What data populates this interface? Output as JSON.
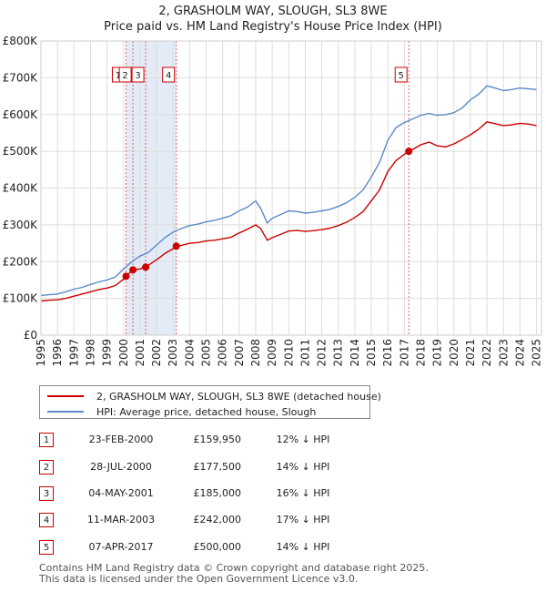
{
  "chart_data": {
    "type": "line",
    "title_line1": "2, GRASHOLM WAY, SLOUGH, SL3 8WE",
    "title_line2": "Price paid vs. HM Land Registry's House Price Index (HPI)",
    "xlim": [
      1995,
      2025.3
    ],
    "ylim": [
      0,
      800000
    ],
    "y_ticks": [
      0,
      100000,
      200000,
      300000,
      400000,
      500000,
      600000,
      700000,
      800000
    ],
    "y_tick_labels": [
      "£0",
      "£100K",
      "£200K",
      "£300K",
      "£400K",
      "£500K",
      "£600K",
      "£700K",
      "£800K"
    ],
    "x_ticks": [
      1995,
      1996,
      1997,
      1998,
      1999,
      2000,
      2001,
      2002,
      2003,
      2004,
      2005,
      2006,
      2007,
      2008,
      2009,
      2010,
      2011,
      2012,
      2013,
      2014,
      2015,
      2016,
      2017,
      2018,
      2019,
      2020,
      2021,
      2022,
      2023,
      2024,
      2025
    ],
    "x_tick_labels": [
      "1995",
      "1996",
      "1997",
      "1998",
      "1999",
      "2000",
      "2001",
      "2002",
      "2003",
      "2004",
      "2005",
      "2006",
      "2007",
      "2008",
      "2009",
      "2010",
      "2011",
      "2012",
      "2013",
      "2014",
      "2015",
      "2016",
      "2017",
      "2018",
      "2019",
      "2020",
      "2021",
      "2022",
      "2023",
      "2024",
      "2025"
    ],
    "highlight_band": [
      2000.15,
      2003.2
    ],
    "grid": true,
    "series": [
      {
        "name": "HPI: Average price, detached house, Slough",
        "color": "#5b8ac6",
        "x": [
          1995,
          1995.5,
          1996,
          1996.5,
          1997,
          1997.5,
          1998,
          1998.5,
          1999,
          1999.5,
          2000,
          2000.5,
          2001,
          2001.5,
          2002,
          2002.5,
          2003,
          2003.5,
          2004,
          2004.5,
          2005,
          2005.5,
          2006,
          2006.5,
          2007,
          2007.5,
          2008,
          2008.3,
          2008.7,
          2009,
          2009.5,
          2010,
          2010.5,
          2011,
          2011.5,
          2012,
          2012.5,
          2013,
          2013.5,
          2014,
          2014.5,
          2015,
          2015.5,
          2016,
          2016.5,
          2017,
          2017.5,
          2018,
          2018.5,
          2019,
          2019.5,
          2020,
          2020.5,
          2021,
          2021.5,
          2022,
          2022.5,
          2023,
          2023.5,
          2024,
          2024.5,
          2025
        ],
        "values": [
          108000,
          110000,
          112000,
          118000,
          125000,
          130000,
          138000,
          145000,
          150000,
          158000,
          180000,
          200000,
          215000,
          225000,
          245000,
          265000,
          280000,
          290000,
          298000,
          302000,
          308000,
          312000,
          318000,
          325000,
          338000,
          348000,
          365000,
          345000,
          305000,
          318000,
          328000,
          338000,
          336000,
          332000,
          334000,
          338000,
          342000,
          350000,
          360000,
          375000,
          395000,
          430000,
          470000,
          530000,
          565000,
          578000,
          588000,
          598000,
          603000,
          598000,
          600000,
          605000,
          618000,
          640000,
          655000,
          678000,
          672000,
          665000,
          668000,
          672000,
          670000,
          668000
        ]
      },
      {
        "name": "2, GRASHOLM WAY, SLOUGH, SL3 8WE (detached house)",
        "color": "#cc0000",
        "x": [
          1995,
          1995.5,
          1996,
          1996.5,
          1997,
          1997.5,
          1998,
          1998.5,
          1999,
          1999.5,
          2000,
          2000.15,
          2000.57,
          2001,
          2001.34,
          2001.5,
          2002,
          2002.5,
          2003,
          2003.19,
          2003.5,
          2004,
          2004.5,
          2005,
          2005.5,
          2006,
          2006.5,
          2007,
          2007.5,
          2008,
          2008.3,
          2008.7,
          2009,
          2009.5,
          2010,
          2010.5,
          2011,
          2011.5,
          2012,
          2012.5,
          2013,
          2013.5,
          2014,
          2014.5,
          2015,
          2015.5,
          2016,
          2016.5,
          2017,
          2017.27,
          2017.5,
          2018,
          2018.5,
          2019,
          2019.5,
          2020,
          2020.5,
          2021,
          2021.5,
          2022,
          2022.5,
          2023,
          2023.5,
          2024,
          2024.5,
          2025
        ],
        "values": [
          93000,
          95000,
          96000,
          100000,
          106000,
          112000,
          118000,
          124000,
          128000,
          135000,
          152000,
          159950,
          177500,
          180000,
          185000,
          190000,
          205000,
          222000,
          235000,
          242000,
          244000,
          250000,
          252000,
          256000,
          258000,
          262000,
          266000,
          278000,
          288000,
          300000,
          290000,
          258000,
          265000,
          274000,
          283000,
          285000,
          282000,
          284000,
          287000,
          291000,
          298000,
          307000,
          320000,
          336000,
          365000,
          395000,
          445000,
          475000,
          492000,
          500000,
          505000,
          518000,
          525000,
          515000,
          512000,
          520000,
          532000,
          545000,
          560000,
          580000,
          575000,
          570000,
          572000,
          576000,
          574000,
          570000
        ]
      }
    ],
    "sales": [
      {
        "id": "1",
        "date": "23-FEB-2000",
        "x": 2000.15,
        "price": 159950,
        "price_label": "£159,950",
        "hpi_delta": "12% ↓ HPI"
      },
      {
        "id": "2",
        "date": "28-JUL-2000",
        "x": 2000.57,
        "price": 177500,
        "price_label": "£177,500",
        "hpi_delta": "14% ↓ HPI"
      },
      {
        "id": "3",
        "date": "04-MAY-2001",
        "x": 2001.34,
        "price": 185000,
        "price_label": "£185,000",
        "hpi_delta": "16% ↓ HPI"
      },
      {
        "id": "4",
        "date": "11-MAR-2003",
        "x": 2003.19,
        "price": 242000,
        "price_label": "£242,000",
        "hpi_delta": "17% ↓ HPI"
      },
      {
        "id": "5",
        "date": "07-APR-2017",
        "x": 2017.27,
        "price": 500000,
        "price_label": "£500,000",
        "hpi_delta": "14% ↓ HPI"
      }
    ]
  },
  "legend": {
    "property_label": "2, GRASHOLM WAY, SLOUGH, SL3 8WE (detached house)",
    "hpi_label": "HPI: Average price, detached house, Slough",
    "property_color": "#cc0000",
    "hpi_color": "#5b8ac6"
  },
  "footer": {
    "line1": "Contains HM Land Registry data © Crown copyright and database right 2025.",
    "line2": "This data is licensed under the Open Government Licence v3.0."
  }
}
